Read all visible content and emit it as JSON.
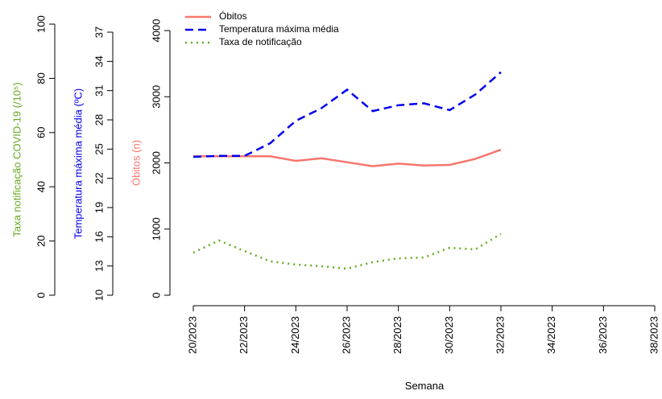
{
  "chart_data": {
    "type": "line",
    "xlabel": "Semana",
    "ylabel": "Óbitos (n)",
    "y2label": "Temperatura máxima média (ºC)",
    "y3label": "Taxa notificação COVID-19 (/10⁵)",
    "ylabel_color": "#f8766d",
    "y2label_color": "#0000ee",
    "y3label_color": "#66aa22",
    "x": [
      20,
      21,
      22,
      23,
      24,
      25,
      26,
      27,
      28,
      29,
      30,
      31,
      32
    ],
    "xlim": [
      20,
      38
    ],
    "xticks": [
      {
        "value": 20,
        "label": "20/2023"
      },
      {
        "value": 22,
        "label": "22/2023"
      },
      {
        "value": 24,
        "label": "24/2023"
      },
      {
        "value": 26,
        "label": "26/2023"
      },
      {
        "value": 28,
        "label": "28/2023"
      },
      {
        "value": 30,
        "label": "30/2023"
      },
      {
        "value": 32,
        "label": "32/2023"
      },
      {
        "value": 34,
        "label": "34/2023"
      },
      {
        "value": 36,
        "label": "36/2023"
      },
      {
        "value": 38,
        "label": "38/2023"
      }
    ],
    "ylim": [
      0,
      4000
    ],
    "yticks": [
      0,
      1000,
      2000,
      3000,
      4000
    ],
    "y2lim": [
      10,
      37
    ],
    "y2ticks": [
      10,
      13,
      16,
      19,
      22,
      25,
      28,
      31,
      34,
      37
    ],
    "y3lim": [
      0,
      100
    ],
    "y3ticks": [
      0,
      20,
      40,
      60,
      80,
      100
    ],
    "series": [
      {
        "name": "Óbitos",
        "color": "#f8766d",
        "dash": "solid",
        "axis": "y",
        "values": [
          2100,
          2100,
          2100,
          2100,
          2030,
          2070,
          2010,
          1950,
          1990,
          1960,
          1970,
          2060,
          2200
        ]
      },
      {
        "name": "Temperatura máxima média",
        "color": "#0000ee",
        "dash": "dashed",
        "axis": "y2",
        "values": [
          24.2,
          24.3,
          24.3,
          25.6,
          27.9,
          29.2,
          31.1,
          28.9,
          29.5,
          29.7,
          29.0,
          30.6,
          32.9
        ]
      },
      {
        "name": "Taxa de notificação",
        "color": "#66aa22",
        "dash": "dotted",
        "axis": "y3",
        "values": [
          15.7,
          20.2,
          16.3,
          12.5,
          11.3,
          10.7,
          9.8,
          12.2,
          13.6,
          13.9,
          17.5,
          16.9,
          22.6
        ]
      }
    ]
  }
}
